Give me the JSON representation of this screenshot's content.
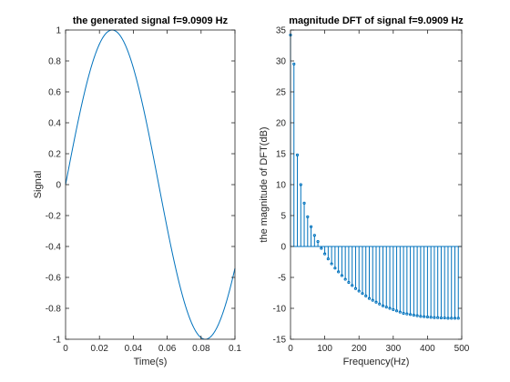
{
  "colors": {
    "series": "#0072BD",
    "axis": "#262626",
    "background": "#ffffff"
  },
  "chart_data": [
    {
      "type": "line",
      "title": "the generated signal f=9.0909 Hz",
      "xlabel": "Time(s)",
      "ylabel": "Signal",
      "xlim": [
        0,
        0.1
      ],
      "ylim": [
        -1,
        1
      ],
      "xticks": [
        0,
        0.02,
        0.04,
        0.06,
        0.08,
        0.1
      ],
      "xtick_labels": [
        "0",
        "0.02",
        "0.04",
        "0.06",
        "0.08",
        "0.1"
      ],
      "yticks": [
        -1,
        -0.8,
        -0.6,
        -0.4,
        -0.2,
        0,
        0.2,
        0.4,
        0.6,
        0.8,
        1
      ],
      "ytick_labels": [
        "-1",
        "-0.8",
        "-0.6",
        "-0.4",
        "-0.2",
        "0",
        "0.2",
        "0.4",
        "0.6",
        "0.8",
        "1"
      ],
      "grid": false,
      "series": [
        {
          "frequency_hz": 9.0909,
          "amplitude": 1,
          "x_start": 0,
          "x_end": 0.1
        }
      ]
    },
    {
      "type": "stem",
      "title": "magnitude DFT of signal f=9.0909 Hz",
      "xlabel": "Frequency(Hz)",
      "ylabel": "the magnitude of DFT(dB)",
      "xlim": [
        0,
        500
      ],
      "ylim": [
        -15,
        35
      ],
      "xticks": [
        0,
        100,
        200,
        300,
        400,
        500
      ],
      "xtick_labels": [
        "0",
        "100",
        "200",
        "300",
        "400",
        "500"
      ],
      "yticks": [
        -15,
        -10,
        -5,
        0,
        5,
        10,
        15,
        20,
        25,
        30,
        35
      ],
      "ytick_labels": [
        "-15",
        "-10",
        "-5",
        "0",
        "5",
        "10",
        "15",
        "20",
        "25",
        "30",
        "35"
      ],
      "grid": false,
      "x": [
        0,
        10,
        20,
        30,
        40,
        50,
        60,
        70,
        80,
        90,
        100,
        110,
        120,
        130,
        140,
        150,
        160,
        170,
        180,
        190,
        200,
        210,
        220,
        230,
        240,
        250,
        260,
        270,
        280,
        290,
        300,
        310,
        320,
        330,
        340,
        350,
        360,
        370,
        380,
        390,
        400,
        410,
        420,
        430,
        440,
        450,
        460,
        470,
        480,
        490
      ],
      "y": [
        34.2,
        29.5,
        14.8,
        10.0,
        7.0,
        4.8,
        3.2,
        1.8,
        0.8,
        -0.3,
        -1.2,
        -2.0,
        -2.8,
        -3.5,
        -4.1,
        -4.7,
        -5.3,
        -5.8,
        -6.3,
        -6.8,
        -7.2,
        -7.6,
        -8.0,
        -8.4,
        -8.7,
        -9.0,
        -9.3,
        -9.6,
        -9.8,
        -10.0,
        -10.2,
        -10.4,
        -10.6,
        -10.8,
        -10.9,
        -11.0,
        -11.1,
        -11.2,
        -11.3,
        -11.35,
        -11.4,
        -11.45,
        -11.5,
        -11.5,
        -11.55,
        -11.55,
        -11.6,
        -11.6,
        -11.6,
        -11.6
      ]
    }
  ]
}
